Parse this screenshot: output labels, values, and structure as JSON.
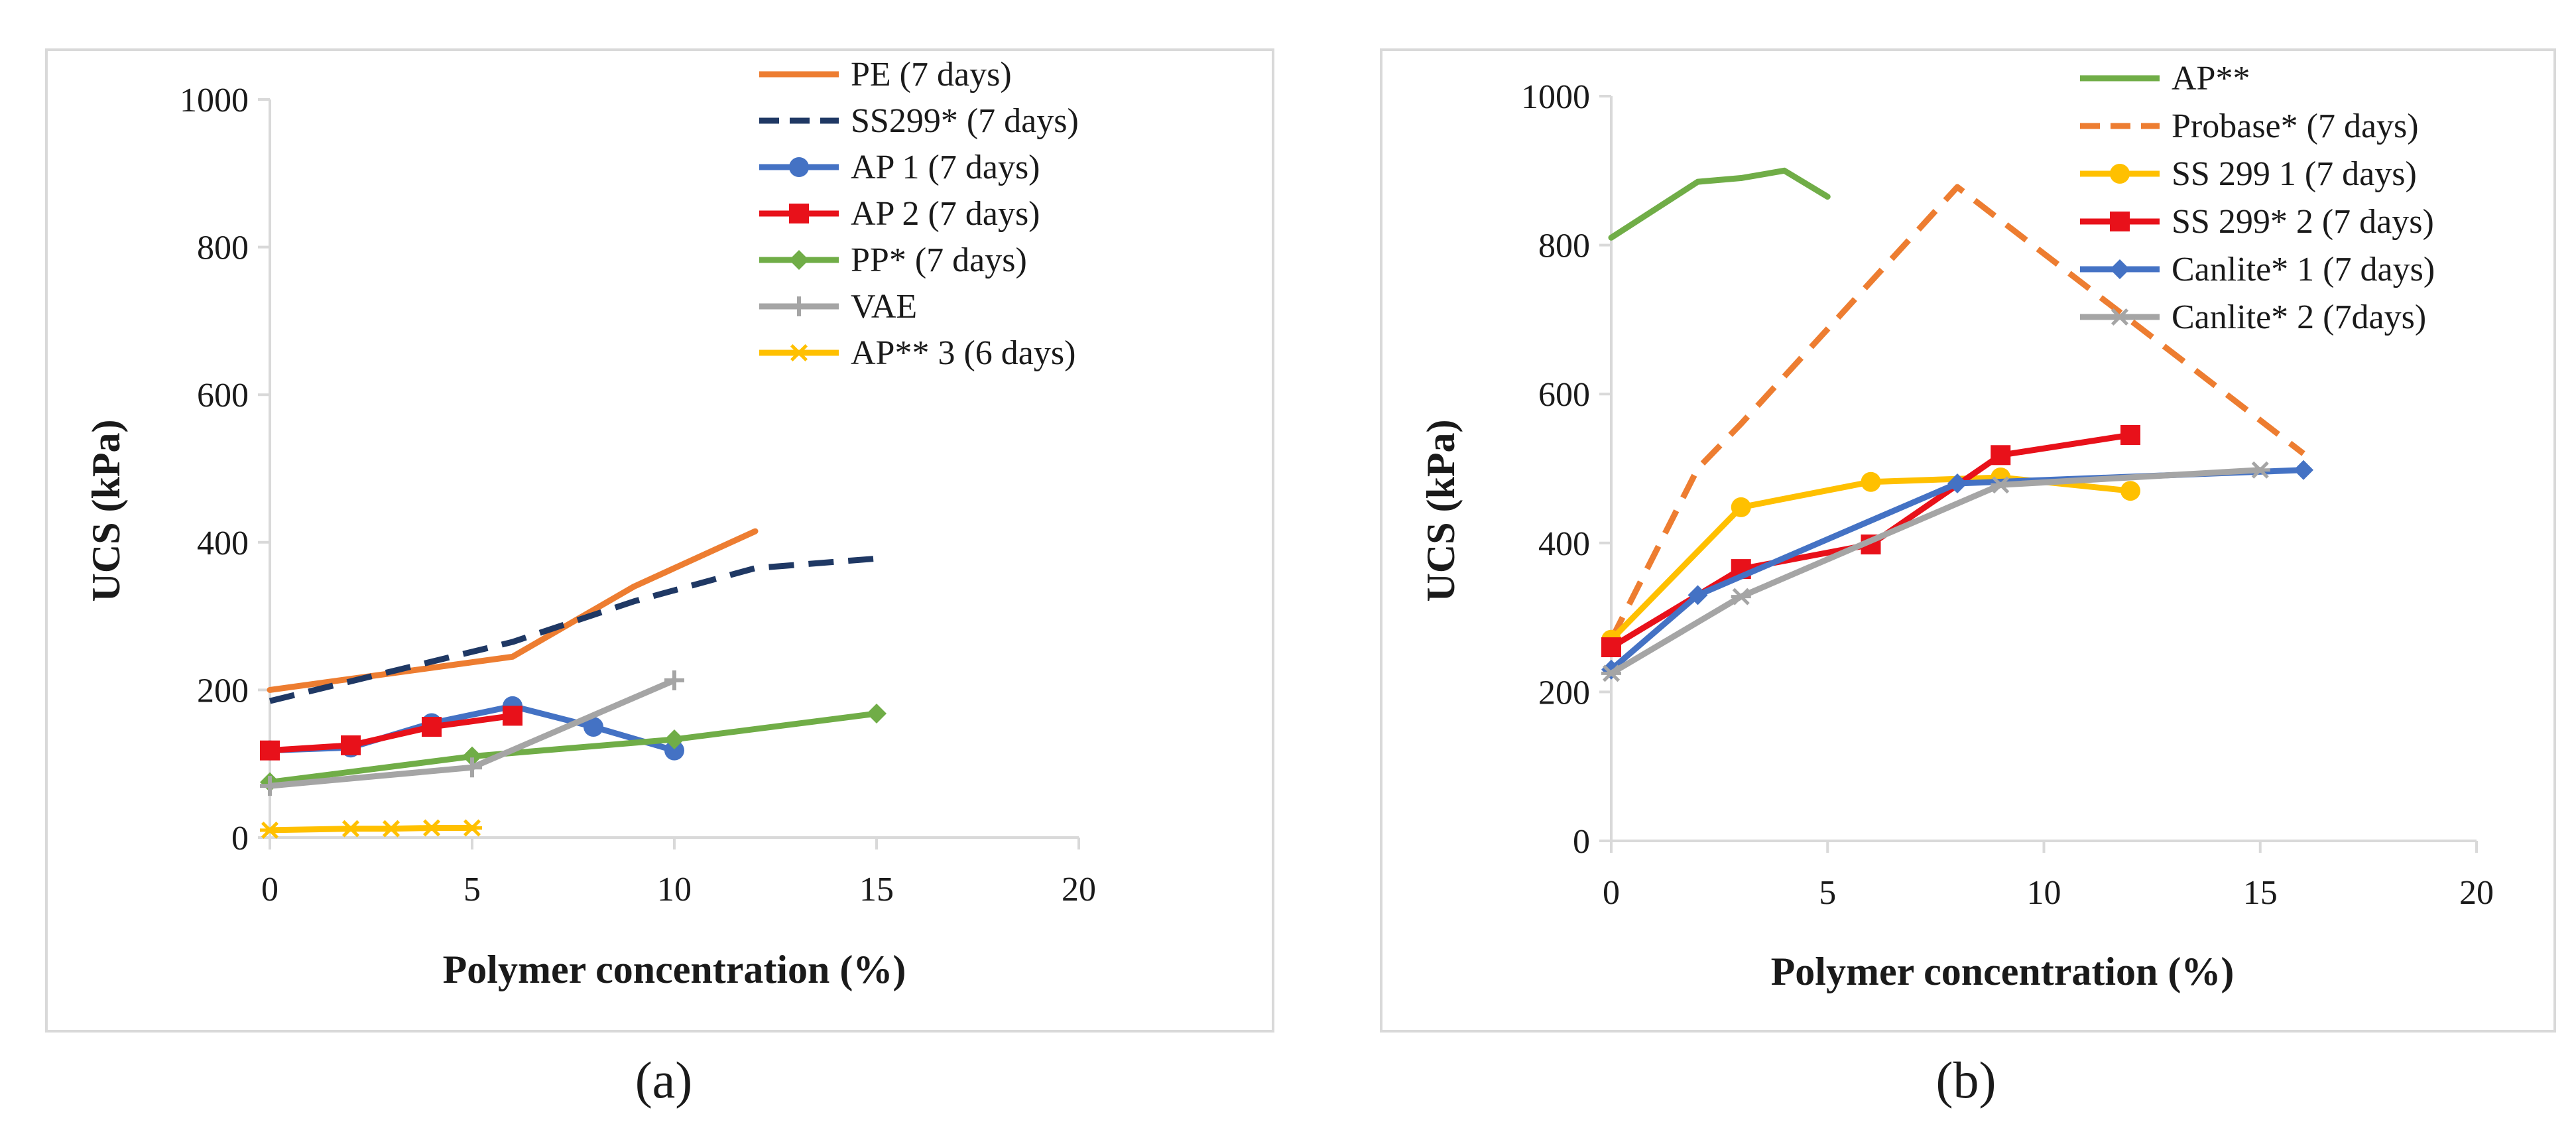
{
  "colors": {
    "orange": "#ED7D31",
    "navy": "#1F3864",
    "blue": "#4472C4",
    "red": "#E8111A",
    "green": "#70AD47",
    "gray": "#A5A5A5",
    "yellow": "#FFC000",
    "axis": "#D9D9D9",
    "frame": "#D9D9D9"
  },
  "chart_data": [
    {
      "type": "line",
      "caption": "(a)",
      "title": "",
      "xlabel": "Polymer concentration (%)",
      "ylabel": "UCS (kPa)",
      "xlim": [
        0,
        20
      ],
      "ylim": [
        0,
        1000
      ],
      "xticks": [
        0,
        5,
        10,
        15,
        20
      ],
      "yticks": [
        0,
        200,
        400,
        600,
        800,
        1000
      ],
      "grid": false,
      "legend_position": "top-right",
      "series": [
        {
          "name": "PE (7 days)",
          "color": "orange",
          "dash": "solid",
          "marker": "none",
          "x": [
            0,
            6,
            9,
            12
          ],
          "y": [
            200,
            245,
            340,
            415
          ]
        },
        {
          "name": "SS299* (7 days)",
          "color": "navy",
          "dash": "dash",
          "marker": "none",
          "x": [
            0,
            6,
            9,
            12,
            15
          ],
          "y": [
            185,
            265,
            320,
            365,
            378
          ]
        },
        {
          "name": "AP 1 (7 days)",
          "color": "blue",
          "dash": "solid",
          "marker": "circle",
          "x": [
            0,
            2,
            4,
            6,
            8,
            10
          ],
          "y": [
            118,
            122,
            155,
            178,
            150,
            118
          ]
        },
        {
          "name": "AP 2 (7 days)",
          "color": "red",
          "dash": "solid",
          "marker": "square",
          "x": [
            0,
            2,
            4,
            6
          ],
          "y": [
            118,
            125,
            150,
            165
          ]
        },
        {
          "name": "PP* (7 days)",
          "color": "green",
          "dash": "solid",
          "marker": "diamond",
          "x": [
            0,
            5,
            10,
            15
          ],
          "y": [
            75,
            110,
            133,
            168
          ]
        },
        {
          "name": "VAE",
          "color": "gray",
          "dash": "solid",
          "marker": "plus",
          "x": [
            0,
            5,
            10
          ],
          "y": [
            70,
            95,
            213
          ]
        },
        {
          "name": "AP** 3 (6 days)",
          "color": "yellow",
          "dash": "solid",
          "marker": "star",
          "x": [
            0,
            2,
            3,
            4,
            5
          ],
          "y": [
            10,
            12,
            12,
            13,
            13
          ]
        }
      ]
    },
    {
      "type": "line",
      "caption": "(b)",
      "title": "",
      "xlabel": "Polymer concentration (%)",
      "ylabel": "UCS (kPa)",
      "xlim": [
        0,
        20
      ],
      "ylim": [
        0,
        1000
      ],
      "xticks": [
        0,
        5,
        10,
        15,
        20
      ],
      "yticks": [
        0,
        200,
        400,
        600,
        800,
        1000
      ],
      "grid": false,
      "legend_position": "top-right",
      "series": [
        {
          "name": "AP**",
          "color": "green",
          "dash": "solid",
          "marker": "none",
          "x": [
            0,
            2,
            3,
            4,
            5
          ],
          "y": [
            810,
            885,
            890,
            900,
            865
          ]
        },
        {
          "name": "Probase* (7 days)",
          "color": "orange",
          "dash": "dash",
          "marker": "none",
          "x": [
            0,
            2,
            3,
            8,
            16
          ],
          "y": [
            270,
            500,
            560,
            878,
            520
          ]
        },
        {
          "name": "SS 299 1 (7 days)",
          "color": "yellow",
          "dash": "solid",
          "marker": "circle",
          "x": [
            0,
            3,
            6,
            9,
            12
          ],
          "y": [
            270,
            448,
            482,
            488,
            470
          ]
        },
        {
          "name": "SS 299* 2 (7 days)",
          "color": "red",
          "dash": "solid",
          "marker": "square",
          "x": [
            0,
            3,
            6,
            9,
            12
          ],
          "y": [
            260,
            365,
            398,
            518,
            545
          ]
        },
        {
          "name": "Canlite* 1 (7 days)",
          "color": "blue",
          "dash": "solid",
          "marker": "diamond",
          "x": [
            0,
            2,
            8,
            16
          ],
          "y": [
            230,
            330,
            480,
            498
          ]
        },
        {
          "name": "Canlite* 2 (7days)",
          "color": "gray",
          "dash": "solid",
          "marker": "star",
          "x": [
            0,
            3,
            9,
            15
          ],
          "y": [
            225,
            328,
            478,
            498
          ]
        }
      ]
    }
  ]
}
